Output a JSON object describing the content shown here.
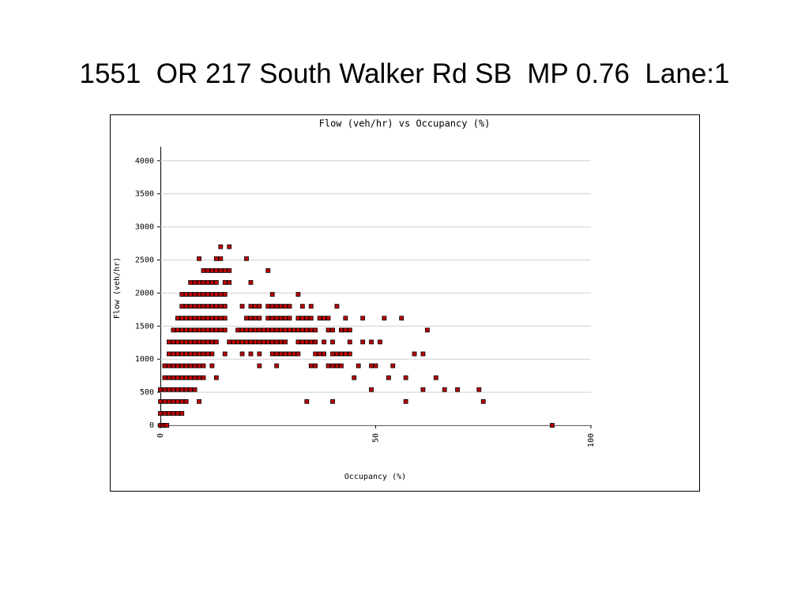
{
  "slide_title": "1551  OR 217 South Walker Rd SB  MP 0.76  Lane:1",
  "chart_data": {
    "type": "scatter",
    "title": "Flow (veh/hr) vs Occupancy (%)",
    "xlabel": "Occupancy (%)",
    "ylabel": "Flow (veh/hr)",
    "color": "#c00000",
    "grid": true,
    "xlim": [
      0,
      100
    ],
    "xticks": [
      0,
      50,
      100
    ],
    "ylim": [
      0,
      4200
    ],
    "yticks": [
      0,
      500,
      1000,
      1500,
      2000,
      2500,
      3000,
      3500,
      4000
    ],
    "x": [
      0,
      0.5,
      1,
      1.5,
      91,
      0,
      1,
      2,
      3,
      4,
      5,
      0,
      1,
      2,
      3,
      4,
      5,
      6,
      9,
      34,
      40,
      57,
      75,
      0,
      1,
      2,
      3,
      4,
      5,
      6,
      7,
      8,
      49,
      61,
      66,
      69,
      74,
      1,
      2,
      3,
      4,
      5,
      6,
      7,
      8,
      9,
      10,
      13,
      45,
      53,
      57,
      64,
      1,
      2,
      3,
      4,
      5,
      6,
      7,
      8,
      9,
      10,
      12,
      23,
      27,
      35,
      36,
      39,
      40,
      41,
      42,
      46,
      49,
      50,
      54,
      2,
      3,
      4,
      5,
      6,
      7,
      8,
      9,
      10,
      11,
      12,
      15,
      19,
      21,
      23,
      26,
      27,
      28,
      29,
      30,
      31,
      32,
      36,
      37,
      38,
      40,
      41,
      42,
      43,
      44,
      59,
      61,
      2,
      3,
      4,
      5,
      6,
      7,
      8,
      9,
      10,
      11,
      12,
      13,
      16,
      17,
      18,
      19,
      20,
      21,
      22,
      23,
      24,
      25,
      26,
      27,
      28,
      29,
      32,
      33,
      34,
      35,
      36,
      38,
      40,
      44,
      47,
      49,
      51,
      3,
      4,
      5,
      6,
      7,
      8,
      9,
      10,
      11,
      12,
      13,
      14,
      15,
      18,
      19,
      20,
      21,
      22,
      23,
      24,
      25,
      26,
      27,
      28,
      29,
      30,
      31,
      32,
      33,
      34,
      35,
      36,
      39,
      40,
      42,
      43,
      44,
      62,
      4,
      5,
      6,
      7,
      8,
      9,
      10,
      11,
      12,
      13,
      14,
      15,
      20,
      21,
      22,
      23,
      25,
      26,
      27,
      28,
      29,
      30,
      32,
      33,
      34,
      35,
      37,
      38,
      39,
      43,
      47,
      52,
      56,
      5,
      6,
      7,
      8,
      9,
      10,
      11,
      12,
      13,
      14,
      15,
      19,
      21,
      22,
      23,
      25,
      26,
      27,
      28,
      29,
      30,
      33,
      35,
      41,
      5,
      6,
      7,
      8,
      9,
      10,
      11,
      12,
      13,
      14,
      15,
      26,
      32,
      7,
      8,
      9,
      10,
      11,
      12,
      13,
      15,
      16,
      21,
      10,
      11,
      12,
      13,
      14,
      15,
      16,
      25,
      9,
      13,
      14,
      20,
      14,
      16
    ],
    "values": [
      0,
      0,
      0,
      0,
      0,
      180,
      180,
      180,
      180,
      180,
      180,
      360,
      360,
      360,
      360,
      360,
      360,
      360,
      360,
      360,
      360,
      360,
      360,
      540,
      540,
      540,
      540,
      540,
      540,
      540,
      540,
      540,
      540,
      540,
      540,
      540,
      540,
      720,
      720,
      720,
      720,
      720,
      720,
      720,
      720,
      720,
      720,
      720,
      720,
      720,
      720,
      720,
      900,
      900,
      900,
      900,
      900,
      900,
      900,
      900,
      900,
      900,
      900,
      900,
      900,
      900,
      900,
      900,
      900,
      900,
      900,
      900,
      900,
      900,
      900,
      1080,
      1080,
      1080,
      1080,
      1080,
      1080,
      1080,
      1080,
      1080,
      1080,
      1080,
      1080,
      1080,
      1080,
      1080,
      1080,
      1080,
      1080,
      1080,
      1080,
      1080,
      1080,
      1080,
      1080,
      1080,
      1080,
      1080,
      1080,
      1080,
      1080,
      1080,
      1080,
      1260,
      1260,
      1260,
      1260,
      1260,
      1260,
      1260,
      1260,
      1260,
      1260,
      1260,
      1260,
      1260,
      1260,
      1260,
      1260,
      1260,
      1260,
      1260,
      1260,
      1260,
      1260,
      1260,
      1260,
      1260,
      1260,
      1260,
      1260,
      1260,
      1260,
      1260,
      1260,
      1260,
      1260,
      1260,
      1260,
      1260,
      1440,
      1440,
      1440,
      1440,
      1440,
      1440,
      1440,
      1440,
      1440,
      1440,
      1440,
      1440,
      1440,
      1440,
      1440,
      1440,
      1440,
      1440,
      1440,
      1440,
      1440,
      1440,
      1440,
      1440,
      1440,
      1440,
      1440,
      1440,
      1440,
      1440,
      1440,
      1440,
      1440,
      1440,
      1440,
      1440,
      1440,
      1440,
      1620,
      1620,
      1620,
      1620,
      1620,
      1620,
      1620,
      1620,
      1620,
      1620,
      1620,
      1620,
      1620,
      1620,
      1620,
      1620,
      1620,
      1620,
      1620,
      1620,
      1620,
      1620,
      1620,
      1620,
      1620,
      1620,
      1620,
      1620,
      1620,
      1620,
      1620,
      1620,
      1620,
      1800,
      1800,
      1800,
      1800,
      1800,
      1800,
      1800,
      1800,
      1800,
      1800,
      1800,
      1800,
      1800,
      1800,
      1800,
      1800,
      1800,
      1800,
      1800,
      1800,
      1800,
      1800,
      1800,
      1800,
      1980,
      1980,
      1980,
      1980,
      1980,
      1980,
      1980,
      1980,
      1980,
      1980,
      1980,
      1980,
      1980,
      2160,
      2160,
      2160,
      2160,
      2160,
      2160,
      2160,
      2160,
      2160,
      2160,
      2340,
      2340,
      2340,
      2340,
      2340,
      2340,
      2340,
      2340,
      2520,
      2520,
      2520,
      2520,
      2700,
      2700
    ]
  }
}
